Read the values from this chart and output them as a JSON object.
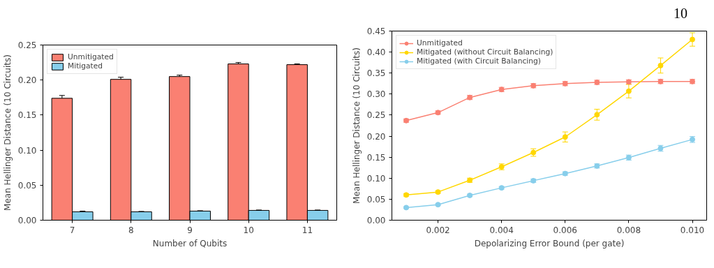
{
  "chart_data": [
    {
      "type": "bar",
      "xlabel": "Number of Qubits",
      "ylabel": "Mean Hellinger Distance (10 Circuits)",
      "categories": [
        "7",
        "8",
        "9",
        "10",
        "11"
      ],
      "series": [
        {
          "name": "Unmitigated",
          "color": "#fa8072",
          "values": [
            0.174,
            0.201,
            0.205,
            0.223,
            0.222
          ],
          "errors": [
            0.004,
            0.003,
            0.002,
            0.002,
            0.001
          ]
        },
        {
          "name": "Mitigated",
          "color": "#87ceeb",
          "values": [
            0.012,
            0.012,
            0.013,
            0.014,
            0.014
          ],
          "errors": [
            0.001,
            0.0005,
            0.0005,
            0.0005,
            0.0005
          ]
        }
      ],
      "ylim": [
        0,
        0.25
      ],
      "yticks": [
        {
          "value": 0,
          "label": "0.00"
        },
        0.05,
        {
          "value": 0.1,
          "label": "0.10"
        },
        0.15,
        {
          "value": 0.2,
          "label": "0.20"
        },
        0.25
      ],
      "grid": false,
      "legend": "top left"
    },
    {
      "type": "line",
      "xlabel": "Depolarizing Error Bound (per gate)",
      "ylabel": "Mean Hellinger Distance (10 Circuits)",
      "annotations": [
        "10"
      ],
      "x": [
        0.001,
        0.002,
        0.003,
        0.004,
        0.005,
        0.006,
        0.007,
        0.008,
        0.009,
        0.01
      ],
      "series": [
        {
          "name": "Unmitigated",
          "color": "#fa8072",
          "values": [
            0.237,
            0.256,
            0.292,
            0.311,
            0.32,
            0.325,
            0.328,
            0.329,
            0.33,
            0.33
          ],
          "errors": [
            0.004,
            0.004,
            0.005,
            0.005,
            0.005,
            0.005,
            0.005,
            0.005,
            0.005,
            0.005
          ]
        },
        {
          "name": "Mitigated (without Circuit Balancing)",
          "color": "#ffd700",
          "values": [
            0.06,
            0.067,
            0.095,
            0.127,
            0.161,
            0.198,
            0.251,
            0.307,
            0.368,
            0.43
          ],
          "errors": [
            0.003,
            0.003,
            0.005,
            0.007,
            0.009,
            0.012,
            0.013,
            0.016,
            0.018,
            0.016
          ]
        },
        {
          "name": "Mitigated (with Circuit Balancing)",
          "color": "#87ceeb",
          "values": [
            0.03,
            0.037,
            0.059,
            0.077,
            0.094,
            0.111,
            0.129,
            0.149,
            0.171,
            0.192
          ],
          "errors": [
            0.002,
            0.002,
            0.003,
            0.003,
            0.004,
            0.004,
            0.005,
            0.006,
            0.007,
            0.007
          ]
        }
      ],
      "xlim": [
        0.00055,
        0.01045
      ],
      "xticks": [
        0.002,
        0.004,
        0.006,
        0.008,
        {
          "value": 0.01,
          "label": "0.010"
        }
      ],
      "ylim": [
        0,
        0.45
      ],
      "yticks": [
        {
          "value": 0,
          "label": "0.00"
        },
        0.05,
        {
          "value": 0.1,
          "label": "0.10"
        },
        0.15,
        {
          "value": 0.2,
          "label": "0.20"
        },
        0.25,
        {
          "value": 0.3,
          "label": "0.30"
        },
        0.35,
        {
          "value": 0.4,
          "label": "0.40"
        },
        0.45
      ],
      "grid": false,
      "legend": "top left",
      "marker": "circle",
      "line_style": "solid"
    }
  ]
}
